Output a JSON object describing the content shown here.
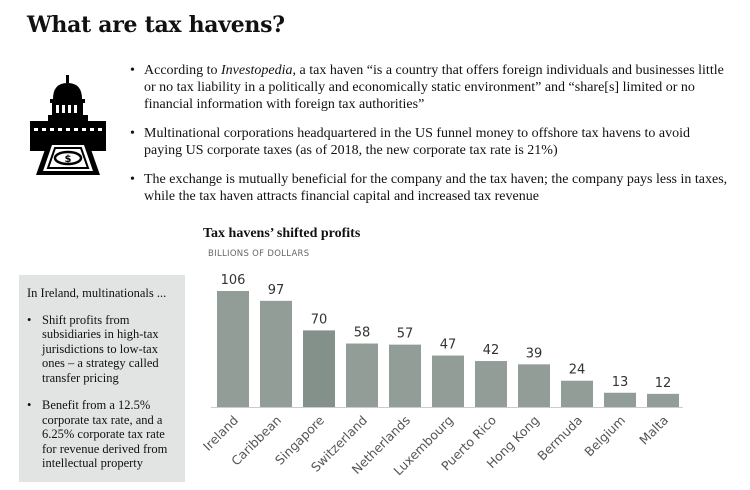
{
  "title": "What are tax havens?",
  "icon": "capitol-building-money-icon",
  "bullets": [
    {
      "pre": "According to ",
      "em": "Investopedia",
      "post": ", a tax haven “is a country that offers foreign individuals and businesses little or no tax liability in a politically and economically static environment” and “share[s] limited or no financial information with foreign tax authorities”"
    },
    {
      "text": "Multinational corporations headquartered in the US funnel money to offshore tax havens to avoid paying US corporate taxes (as of 2018, the new corporate tax rate is 21%)"
    },
    {
      "text": "The exchange is mutually beneficial for the company and the tax haven; the company pays less in taxes, while the tax haven attracts financial capital and increased tax revenue"
    }
  ],
  "sidebar": {
    "heading": "In Ireland, multinationals ...",
    "items": [
      "Shift profits from subsidiaries in high-tax jurisdictions to low-tax ones – a strategy called transfer pricing",
      "Benefit from a 12.5% corporate tax rate, and a 6.25% corporate tax rate for revenue derived from intellectual property"
    ],
    "background": "#e2e3e3"
  },
  "chart_data": {
    "type": "bar",
    "title": "Tax havens’ shifted profits",
    "ylabel": "BILLIONS OF DOLLARS",
    "categories": [
      "Ireland",
      "Caribbean",
      "Singapore",
      "Switzerland",
      "Netherlands",
      "Luxembourg",
      "Puerto Rico",
      "Hong Kong",
      "Bermuda",
      "Belgium",
      "Malta"
    ],
    "values": [
      106,
      97,
      70,
      58,
      57,
      47,
      42,
      39,
      24,
      13,
      12
    ],
    "ylim": [
      0,
      110
    ],
    "grid": false,
    "data_labels": true,
    "bar_color": "#939d98",
    "highlight_color": "#84918b",
    "highlight_category": "Singapore"
  }
}
